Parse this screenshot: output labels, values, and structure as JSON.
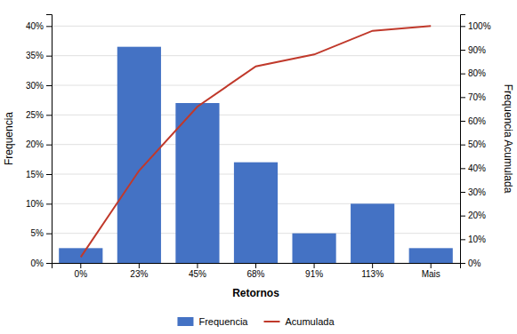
{
  "chart_data": {
    "type": "bar",
    "xlabel": "Retornos",
    "ylabel": "Frequencia",
    "y2label": "Frequencia Acumulada",
    "categories": [
      "0%",
      "23%",
      "45%",
      "68%",
      "91%",
      "113%",
      "Mais"
    ],
    "series": [
      {
        "name": "Frequencia",
        "type": "bar",
        "color": "#4472C4",
        "values": [
          2.5,
          36.5,
          27.0,
          17.0,
          5.0,
          10.0,
          2.5
        ]
      },
      {
        "name": "Acumulada",
        "type": "line",
        "color": "#C0392B",
        "axis": "y2",
        "values": [
          2.5,
          39.0,
          66.0,
          83.0,
          88.0,
          98.0,
          100.0
        ]
      }
    ],
    "ylim": [
      0,
      42
    ],
    "yticks": [
      {
        "value": 0,
        "label": "0%"
      },
      {
        "value": 5,
        "label": "5%"
      },
      {
        "value": 10,
        "label": "10%"
      },
      {
        "value": 15,
        "label": "15%"
      },
      {
        "value": 20,
        "label": "20%"
      },
      {
        "value": 25,
        "label": "25%"
      },
      {
        "value": 30,
        "label": "30%"
      },
      {
        "value": 35,
        "label": "35%"
      },
      {
        "value": 40,
        "label": "40%"
      }
    ],
    "y2lim": [
      0,
      105
    ],
    "y2ticks": [
      {
        "value": 0,
        "label": "0%"
      },
      {
        "value": 10,
        "label": "10%"
      },
      {
        "value": 20,
        "label": "20%"
      },
      {
        "value": 30,
        "label": "30%"
      },
      {
        "value": 40,
        "label": "40%"
      },
      {
        "value": 50,
        "label": "50%"
      },
      {
        "value": 60,
        "label": "60%"
      },
      {
        "value": 70,
        "label": "70%"
      },
      {
        "value": 80,
        "label": "80%"
      },
      {
        "value": 90,
        "label": "90%"
      },
      {
        "value": 100,
        "label": "100%"
      }
    ],
    "grid": true,
    "legend": "bottom"
  }
}
